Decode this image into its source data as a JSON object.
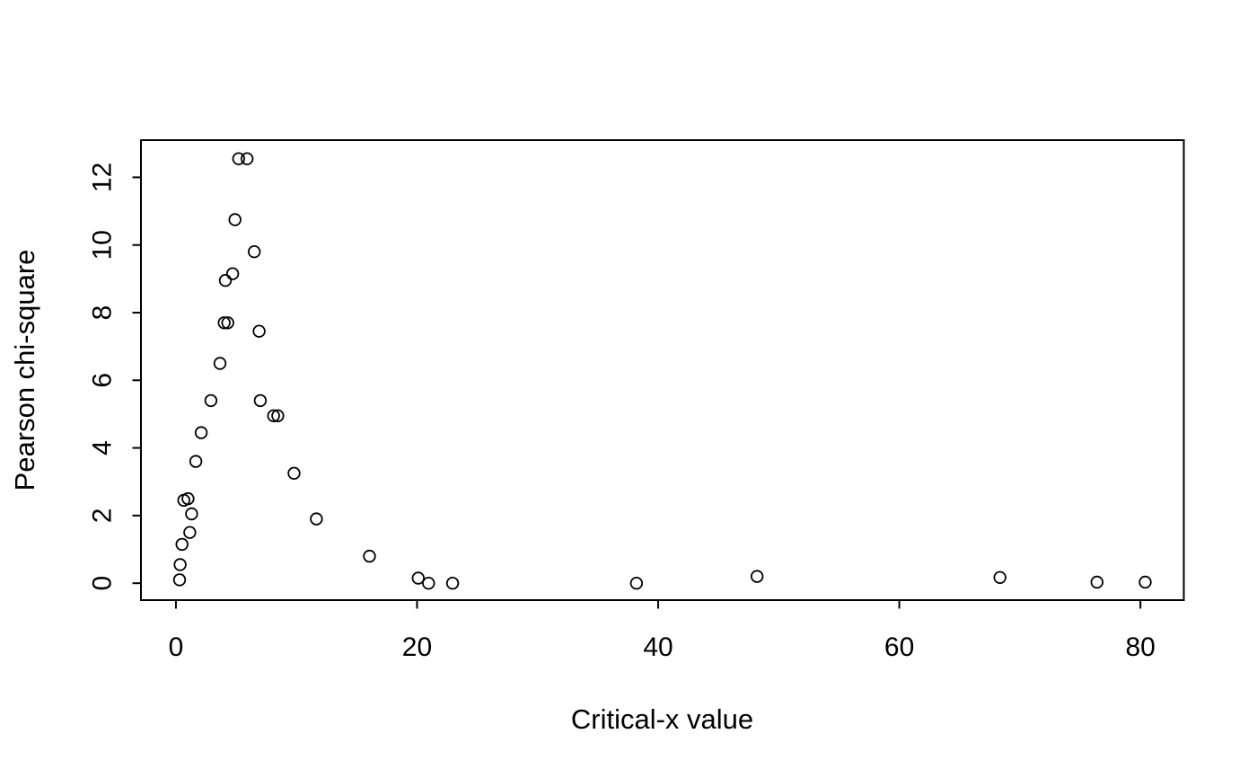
{
  "figure": {
    "background_color": "#ffffff",
    "foreground_color": "#000000"
  },
  "chart_data": {
    "type": "scatter",
    "title": "",
    "xlabel": "Critical-x value",
    "ylabel": "Pearson chi-square",
    "marker": "open-circle",
    "marker_color": "#000000",
    "grid": false,
    "legend": "none",
    "x_ticks": [
      0,
      20,
      40,
      60,
      80
    ],
    "y_ticks": [
      0,
      2,
      4,
      6,
      8,
      10,
      12
    ],
    "xlim": [
      -2.9,
      83.6
    ],
    "ylim": [
      -0.5,
      13.1
    ],
    "y_tick_labels_rotated": true,
    "points": [
      {
        "x": 5.2,
        "y": 12.55
      },
      {
        "x": 5.9,
        "y": 12.55
      },
      {
        "x": 4.9,
        "y": 10.75
      },
      {
        "x": 6.5,
        "y": 9.8
      },
      {
        "x": 4.7,
        "y": 9.15
      },
      {
        "x": 4.1,
        "y": 8.95
      },
      {
        "x": 4.3,
        "y": 7.7
      },
      {
        "x": 4.0,
        "y": 7.7
      },
      {
        "x": 6.9,
        "y": 7.45
      },
      {
        "x": 3.65,
        "y": 6.5
      },
      {
        "x": 2.9,
        "y": 5.4
      },
      {
        "x": 7.0,
        "y": 5.4
      },
      {
        "x": 8.1,
        "y": 4.95
      },
      {
        "x": 8.45,
        "y": 4.95
      },
      {
        "x": 2.1,
        "y": 4.45
      },
      {
        "x": 1.65,
        "y": 3.6
      },
      {
        "x": 9.8,
        "y": 3.25
      },
      {
        "x": 1.0,
        "y": 2.5
      },
      {
        "x": 0.65,
        "y": 2.45
      },
      {
        "x": 1.3,
        "y": 2.05
      },
      {
        "x": 11.65,
        "y": 1.9
      },
      {
        "x": 1.15,
        "y": 1.5
      },
      {
        "x": 0.5,
        "y": 1.15
      },
      {
        "x": 16.05,
        "y": 0.8
      },
      {
        "x": 0.35,
        "y": 0.55
      },
      {
        "x": 0.3,
        "y": 0.1
      },
      {
        "x": 20.1,
        "y": 0.15
      },
      {
        "x": 20.95,
        "y": 0.0
      },
      {
        "x": 22.95,
        "y": 0.0
      },
      {
        "x": 38.2,
        "y": 0.0
      },
      {
        "x": 48.2,
        "y": 0.2
      },
      {
        "x": 68.35,
        "y": 0.17
      },
      {
        "x": 76.4,
        "y": 0.03
      },
      {
        "x": 80.4,
        "y": 0.03
      }
    ]
  }
}
